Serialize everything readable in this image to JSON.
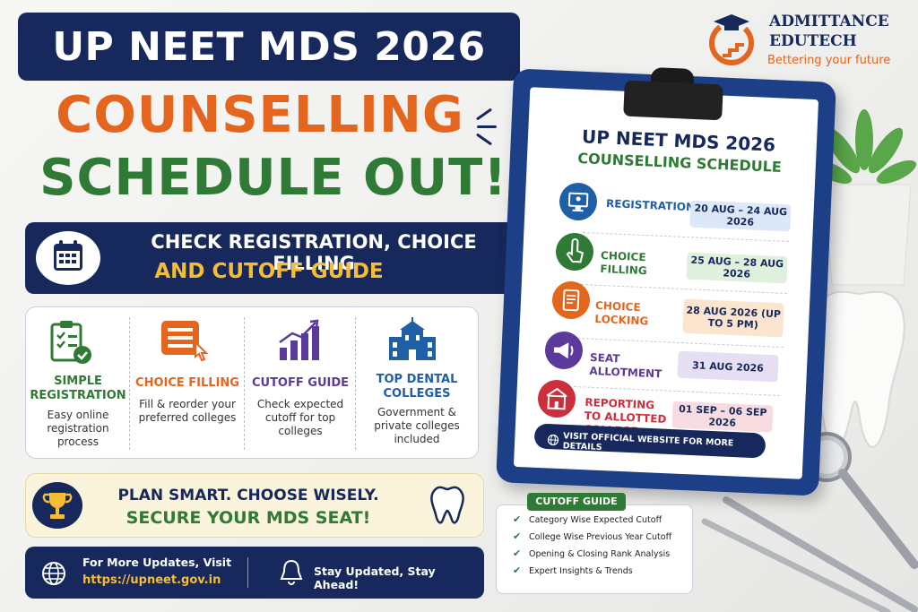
{
  "header": {
    "title": "UP NEET MDS 2026",
    "headline_line1": "COUNSELLING",
    "headline_line2": "SCHEDULE OUT!",
    "banner_line1": "CHECK REGISTRATION, CHOICE FILLING",
    "banner_line2": "AND CUTOFF GUIDE"
  },
  "features": [
    {
      "icon": "clipboard-check-icon",
      "title": "SIMPLE REGISTRATION",
      "desc": "Easy online registration process"
    },
    {
      "icon": "list-pointer-icon",
      "title": "CHOICE FILLING",
      "desc": "Fill & reorder your preferred colleges"
    },
    {
      "icon": "bar-chart-icon",
      "title": "CUTOFF GUIDE",
      "desc": "Check expected cutoff for top colleges"
    },
    {
      "icon": "college-building-icon",
      "title": "TOP DENTAL COLLEGES",
      "desc": "Government & private colleges included"
    }
  ],
  "plan": {
    "line1": "PLAN SMART. CHOOSE WISELY.",
    "line2": "SECURE  YOUR MDS SEAT!"
  },
  "footer": {
    "updates_label": "For More Updates, Visit",
    "url": "https://upneet.gov.in",
    "tagline": "Stay Updated, Stay Ahead!"
  },
  "brand": {
    "name_line1": "ADMITTANCE",
    "name_line2": "EDUTECH",
    "slogan": "Bettering your future"
  },
  "schedule": {
    "title": "UP NEET MDS 2026",
    "subtitle": "COUNSELLING SCHEDULE",
    "steps": [
      {
        "label": "REGISTRATION",
        "date": "20 AUG – 24 AUG 2026",
        "color": "#1f5fa8",
        "date_bg": "#dce8f7"
      },
      {
        "label": "CHOICE FILLING",
        "date": "25 AUG – 28 AUG 2026",
        "color": "#2f7a35",
        "date_bg": "#dff0dc"
      },
      {
        "label": "CHOICE LOCKING",
        "date": "28 AUG 2026 (UP TO 5 PM)",
        "color": "#e4651d",
        "date_bg": "#fbe5cf"
      },
      {
        "label": "SEAT ALLOTMENT",
        "date": "31 AUG 2026",
        "color": "#5c3a9c",
        "date_bg": "#e6def3"
      },
      {
        "label": "REPORTING TO ALLOTTED COLLEGE",
        "date": "01 SEP – 06 SEP 2026",
        "color": "#cc2f3c",
        "date_bg": "#f8dde0"
      }
    ],
    "visit": "VISIT OFFICIAL WEBSITE FOR MORE DETAILS"
  },
  "cutoff_guide": {
    "heading": "CUTOFF GUIDE",
    "items": [
      "Category Wise Expected Cutoff",
      "College Wise Previous Year Cutoff",
      "Opening & Closing Rank Analysis",
      "Expert Insights & Trends"
    ]
  }
}
